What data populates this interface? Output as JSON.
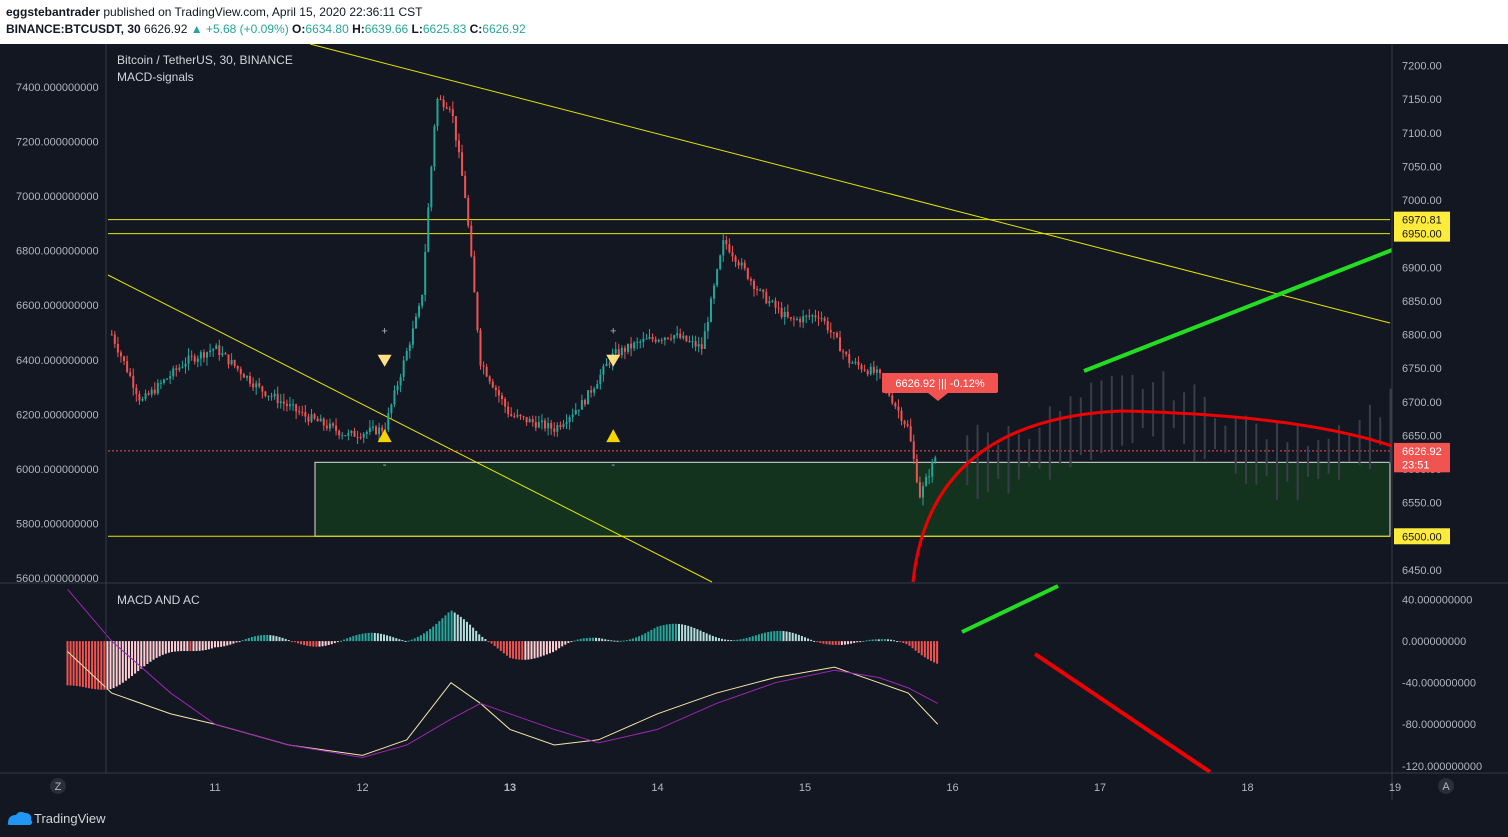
{
  "header": {
    "author": "eggstebantrader",
    "published": "published on TradingView.com, April 15, 2020 22:36:11 CST",
    "symbol": "BINANCE:BTCUSDT, 30",
    "price": "6626.92",
    "change": "▲ +5.68 (+0.09%)",
    "o_label": "O:",
    "o": "6634.80",
    "h_label": "H:",
    "h": "6639.66",
    "l_label": "L:",
    "l": "6625.83",
    "c_label": "C:",
    "c": "6626.92"
  },
  "main_pane": {
    "title": "Bitcoin / TetherUS, 30, BINANCE",
    "indicator": "MACD-signals",
    "price_tag": "6626.92 ||| -0.12%"
  },
  "macd_pane": {
    "title": "MACD AND AC"
  },
  "footer": {
    "brand": "TradingView",
    "z_button": "Z",
    "a_button": "A"
  },
  "colors": {
    "background": "#131722",
    "up": "#26a69a",
    "down": "#ef5350",
    "trendline": "#e6e600",
    "green_line": "#22dd22",
    "red_line": "#ee0000",
    "zone": "#14331f"
  },
  "chart_data": [
    {
      "type": "candlestick",
      "title": "Bitcoin / TetherUS, 30, BINANCE",
      "x_ticks": [
        "11",
        "12",
        "13",
        "14",
        "15",
        "16",
        "17",
        "18",
        "19"
      ],
      "left_axis": {
        "ticks": [
          "7400.000000000",
          "7200.000000000",
          "7000.000000000",
          "6800.000000000",
          "6600.000000000",
          "6400.000000000",
          "6200.000000000",
          "6000.000000000",
          "5800.000000000",
          "5600.000000000"
        ]
      },
      "right_axis": {
        "ticks": [
          "7200.00",
          "7150.00",
          "7100.00",
          "7050.00",
          "7000.00",
          "6950.00",
          "6900.00",
          "6850.00",
          "6800.00",
          "6750.00",
          "6700.00",
          "6650.00",
          "6600.00",
          "6550.00",
          "6500.00",
          "6450.00"
        ],
        "ylim": [
          6432,
          7232
        ]
      },
      "price_labels": [
        {
          "text": "6970.81",
          "value": 6970.81
        },
        {
          "text": "6950.00",
          "value": 6950.0
        },
        {
          "text": "6626.92",
          "value": 6626.92
        },
        {
          "text": "23:51",
          "value": 6607
        },
        {
          "text": "6500.00",
          "value": 6500.0
        }
      ],
      "horizontal_levels": [
        6970.81,
        6950.0,
        6500.0
      ],
      "support_zone": [
        6500,
        6610
      ],
      "current_price": 6626.92,
      "signals": [
        {
          "day": 12.15,
          "type": "sell",
          "marker": "+"
        },
        {
          "day": 12.15,
          "type": "buy",
          "marker": "-"
        },
        {
          "day": 13.7,
          "type": "sell",
          "marker": "+"
        },
        {
          "day": 13.7,
          "type": "buy",
          "marker": "-"
        }
      ],
      "series": [
        {
          "name": "Close",
          "x": [
            10.3,
            10.5,
            10.8,
            11.0,
            11.3,
            11.6,
            11.9,
            12.15,
            12.4,
            12.5,
            12.6,
            12.7,
            12.8,
            13.0,
            13.3,
            13.5,
            13.7,
            13.9,
            14.1,
            14.3,
            14.45,
            14.7,
            14.9,
            15.1,
            15.3,
            15.5,
            15.7,
            15.78,
            15.9
          ],
          "y": [
            6800,
            6700,
            6760,
            6780,
            6720,
            6680,
            6650,
            6660,
            6850,
            7150,
            7140,
            7000,
            6760,
            6680,
            6660,
            6700,
            6770,
            6790,
            6800,
            6780,
            6940,
            6860,
            6820,
            6830,
            6760,
            6740,
            6660,
            6560,
            6627
          ]
        }
      ]
    },
    {
      "type": "bar",
      "title": "MACD AND AC",
      "y_ticks": [
        "40.000000000",
        "0.000000000",
        "-40.000000000",
        "-80.000000000",
        "-120.000000000"
      ],
      "ylim": [
        -126,
        55
      ],
      "series": [
        {
          "name": "MACD",
          "x": [
            10.0,
            10.3,
            10.7,
            11.0,
            11.5,
            12.0,
            12.3,
            12.6,
            12.8,
            13.0,
            13.3,
            13.6,
            14.0,
            14.4,
            14.8,
            15.2,
            15.5,
            15.7,
            15.9
          ],
          "y": [
            -10,
            -50,
            -70,
            -80,
            -100,
            -110,
            -95,
            -40,
            -60,
            -85,
            -100,
            -95,
            -70,
            -50,
            -35,
            -25,
            -40,
            -50,
            -80
          ]
        },
        {
          "name": "Signal",
          "x": [
            10.0,
            10.3,
            10.7,
            11.0,
            11.5,
            12.0,
            12.3,
            12.6,
            12.8,
            13.0,
            13.3,
            13.6,
            14.0,
            14.4,
            14.8,
            15.2,
            15.5,
            15.7,
            15.9
          ],
          "y": [
            50,
            0,
            -50,
            -80,
            -100,
            -112,
            -100,
            -75,
            -60,
            -70,
            -85,
            -98,
            -85,
            -60,
            -40,
            -28,
            -35,
            -45,
            -60
          ]
        }
      ]
    }
  ]
}
